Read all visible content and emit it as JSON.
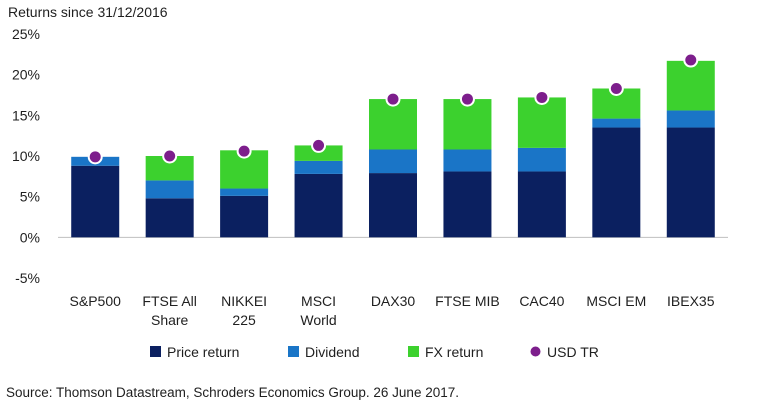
{
  "chart_data": {
    "type": "bar",
    "stacked": true,
    "title": "",
    "ylabel": "Returns since 31/12/2016",
    "xlabel": "",
    "ylim": [
      -5,
      25
    ],
    "yticks": [
      -5,
      0,
      5,
      10,
      15,
      20,
      25
    ],
    "ytick_labels": [
      "-5%",
      "0%",
      "5%",
      "10%",
      "15%",
      "20%",
      "25%"
    ],
    "grid": false,
    "legend_position": "bottom",
    "categories": [
      [
        "S&P500"
      ],
      [
        "FTSE All",
        "Share"
      ],
      [
        "NIKKEI",
        "225"
      ],
      [
        "MSCI",
        "World"
      ],
      [
        "DAX30"
      ],
      [
        "FTSE MIB"
      ],
      [
        "CAC40"
      ],
      [
        "MSCI EM"
      ],
      [
        "IBEX35"
      ]
    ],
    "series": [
      {
        "name": "Price return",
        "color": "#0b2060",
        "values": [
          8.8,
          4.8,
          5.1,
          7.8,
          7.9,
          8.1,
          8.1,
          13.5,
          13.5
        ]
      },
      {
        "name": "Dividend",
        "color": "#1a75c7",
        "values": [
          1.1,
          2.2,
          0.9,
          1.6,
          2.9,
          2.7,
          2.9,
          1.1,
          2.1
        ]
      },
      {
        "name": "FX return",
        "color": "#3cd12e",
        "values": [
          0.0,
          3.0,
          4.7,
          1.9,
          6.2,
          6.2,
          6.2,
          3.7,
          6.1
        ]
      }
    ],
    "markers": {
      "name": "USD TR",
      "color": "#7d1e8c",
      "values": [
        9.9,
        10.0,
        10.6,
        11.3,
        17.0,
        17.0,
        17.2,
        18.3,
        21.8
      ]
    },
    "source": "Source: Thomson Datastream, Schroders Economics Group. 26 June 2017."
  }
}
